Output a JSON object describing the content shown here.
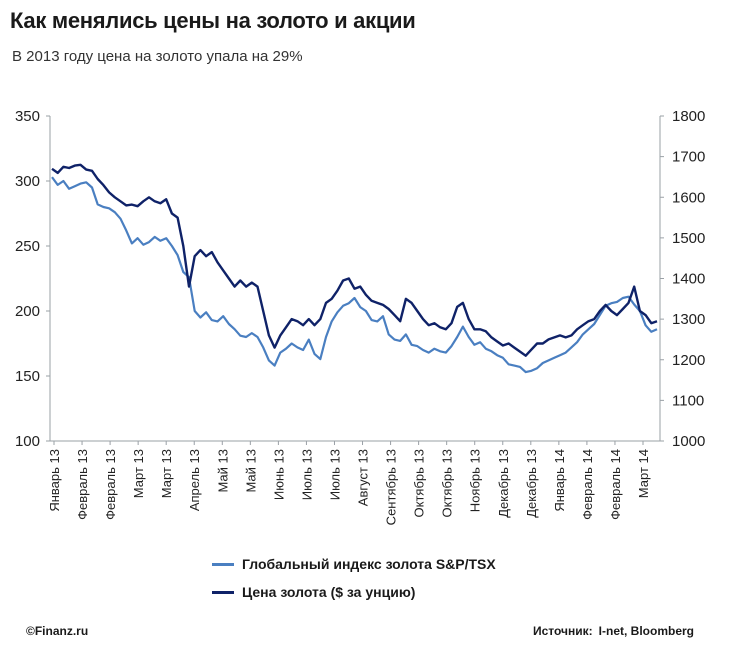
{
  "title": "Как менялись цены на золото и акции",
  "subtitle": "В 2013 году цена на золото упала на 29%",
  "footer": {
    "brand": "©Finanz.ru",
    "source_label": "Источник:",
    "source_value": "I-net, Bloomberg"
  },
  "chart_data": {
    "type": "line",
    "grid": false,
    "legend_position": "bottom",
    "left_axis": {
      "min": 100,
      "max": 350,
      "ticks": [
        100,
        150,
        200,
        250,
        300,
        350
      ]
    },
    "right_axis": {
      "min": 1000,
      "max": 1800,
      "ticks": [
        1000,
        1100,
        1200,
        1300,
        1400,
        1500,
        1600,
        1700,
        1800
      ]
    },
    "x_tick_labels": [
      "Январь 13",
      "Февраль 13",
      "Февраль 13",
      "Март 13",
      "Март 13",
      "Апрель 13",
      "Май 13",
      "Май 13",
      "Июнь 13",
      "Июль 13",
      "Июль 13",
      "Август 13",
      "Сентябрь 13",
      "Октябрь 13",
      "Октябрь 13",
      "Ноябрь 13",
      "Декабрь 13",
      "Декабрь 13",
      "Январь 14",
      "Февраль 14",
      "Февраль 14",
      "Март 14"
    ],
    "series": [
      {
        "name": "Глобальный индекс золота S&P/TSX",
        "axis": "left",
        "color": "#4a7fc1",
        "values": [
          303,
          297,
          300,
          294,
          296,
          298,
          299,
          295,
          282,
          280,
          279,
          276,
          271,
          262,
          252,
          256,
          251,
          253,
          257,
          254,
          256,
          250,
          243,
          230,
          226,
          200,
          195,
          199,
          193,
          192,
          196,
          190,
          186,
          181,
          180,
          183,
          180,
          172,
          162,
          158,
          168,
          171,
          175,
          172,
          170,
          178,
          167,
          163,
          180,
          192,
          199,
          204,
          206,
          210,
          203,
          200,
          193,
          192,
          196,
          182,
          178,
          177,
          182,
          174,
          173,
          170,
          168,
          171,
          169,
          168,
          173,
          180,
          188,
          180,
          174,
          176,
          171,
          169,
          166,
          164,
          159,
          158,
          157,
          153,
          154,
          156,
          160,
          162,
          164,
          166,
          168,
          172,
          176,
          182,
          186,
          190,
          197,
          204,
          206,
          207,
          210,
          211,
          205,
          200,
          189,
          184,
          186
        ]
      },
      {
        "name": "Цена золота ($ за унцию)",
        "axis": "right",
        "color": "#0f2268",
        "values": [
          1670,
          1660,
          1675,
          1672,
          1678,
          1680,
          1668,
          1665,
          1645,
          1630,
          1612,
          1600,
          1590,
          1580,
          1582,
          1578,
          1590,
          1600,
          1590,
          1585,
          1595,
          1560,
          1550,
          1480,
          1380,
          1455,
          1470,
          1455,
          1465,
          1440,
          1420,
          1400,
          1380,
          1395,
          1380,
          1390,
          1380,
          1320,
          1260,
          1230,
          1260,
          1280,
          1300,
          1295,
          1285,
          1300,
          1285,
          1300,
          1340,
          1350,
          1370,
          1395,
          1400,
          1375,
          1380,
          1360,
          1345,
          1340,
          1335,
          1325,
          1310,
          1295,
          1350,
          1340,
          1320,
          1300,
          1285,
          1290,
          1280,
          1275,
          1290,
          1330,
          1340,
          1300,
          1275,
          1275,
          1270,
          1255,
          1245,
          1235,
          1240,
          1230,
          1220,
          1210,
          1225,
          1240,
          1240,
          1250,
          1255,
          1260,
          1255,
          1260,
          1275,
          1285,
          1295,
          1300,
          1320,
          1335,
          1320,
          1310,
          1325,
          1340,
          1380,
          1320,
          1310,
          1290,
          1295
        ]
      }
    ]
  }
}
